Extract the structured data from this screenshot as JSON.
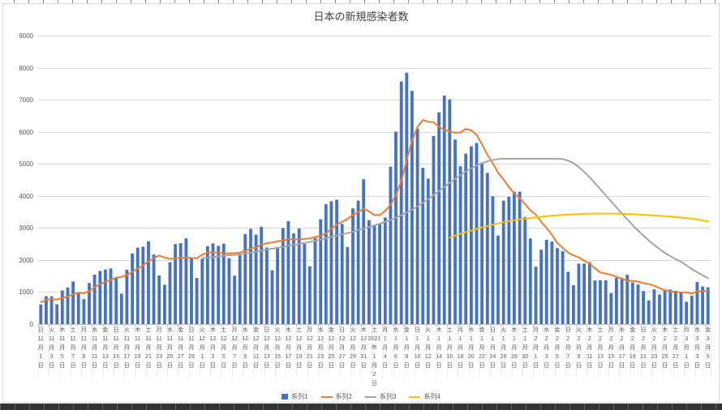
{
  "frame": {
    "top_ruler_tick_color": "#8f8f8f",
    "bottom_bar_color": "#333333"
  },
  "palette": {
    "background": "#FFFFFF",
    "grid": "#D9D9D9",
    "axis_line": "#BFBFBF",
    "axis_text": "#595959",
    "title_text": "#404040",
    "border": "#D9D9D9"
  },
  "chart_data": {
    "type": "combo (bar + 3 lines)",
    "title": "日本の新規感染者数",
    "legend_position": "bottom",
    "grid": true,
    "y_axis": {
      "min": 0,
      "max": 9000,
      "step": 1000
    },
    "x_axis": {
      "unit": "day",
      "start": "2020-11-01",
      "end": "2021-03-05",
      "label_interval_days": 2
    },
    "tick_labels": [
      [
        "日",
        "11",
        "1"
      ],
      [
        "火",
        "11",
        "3"
      ],
      [
        "木",
        "11",
        "5"
      ],
      [
        "土",
        "11",
        "7"
      ],
      [
        "月",
        "11",
        "9"
      ],
      [
        "水",
        "11",
        "11"
      ],
      [
        "金",
        "11",
        "13"
      ],
      [
        "日",
        "11",
        "15"
      ],
      [
        "火",
        "11",
        "17"
      ],
      [
        "木",
        "11",
        "19"
      ],
      [
        "土",
        "11",
        "21"
      ],
      [
        "月",
        "11",
        "23"
      ],
      [
        "水",
        "11",
        "25"
      ],
      [
        "金",
        "11",
        "27"
      ],
      [
        "日",
        "11",
        "29"
      ],
      [
        "火",
        "12",
        "1"
      ],
      [
        "木",
        "12",
        "3"
      ],
      [
        "土",
        "12",
        "5"
      ],
      [
        "月",
        "12",
        "7"
      ],
      [
        "水",
        "12",
        "9"
      ],
      [
        "金",
        "12",
        "11"
      ],
      [
        "日",
        "12",
        "13"
      ],
      [
        "火",
        "12",
        "15"
      ],
      [
        "木",
        "12",
        "17"
      ],
      [
        "土",
        "12",
        "19"
      ],
      [
        "月",
        "12",
        "21"
      ],
      [
        "水",
        "12",
        "23"
      ],
      [
        "金",
        "12",
        "25"
      ],
      [
        "日",
        "12",
        "27"
      ],
      [
        "火",
        "12",
        "29"
      ],
      [
        "木",
        "12",
        "31"
      ],
      [
        "土",
        "1",
        "2",
        "2021"
      ],
      [
        "月",
        "1",
        "4"
      ],
      [
        "水",
        "1",
        "6"
      ],
      [
        "金",
        "1",
        "8"
      ],
      [
        "日",
        "1",
        "10"
      ],
      [
        "火",
        "1",
        "12"
      ],
      [
        "木",
        "1",
        "14"
      ],
      [
        "土",
        "1",
        "16"
      ],
      [
        "月",
        "1",
        "18"
      ],
      [
        "水",
        "1",
        "20"
      ],
      [
        "金",
        "1",
        "22"
      ],
      [
        "日",
        "1",
        "24"
      ],
      [
        "火",
        "1",
        "26"
      ],
      [
        "木",
        "1",
        "28"
      ],
      [
        "土",
        "1",
        "30"
      ],
      [
        "月",
        "2",
        "1"
      ],
      [
        "水",
        "2",
        "3"
      ],
      [
        "金",
        "2",
        "5"
      ],
      [
        "日",
        "2",
        "7"
      ],
      [
        "火",
        "2",
        "9"
      ],
      [
        "木",
        "2",
        "11"
      ],
      [
        "土",
        "2",
        "13"
      ],
      [
        "月",
        "2",
        "15"
      ],
      [
        "水",
        "2",
        "17"
      ],
      [
        "金",
        "2",
        "19"
      ],
      [
        "日",
        "2",
        "21"
      ],
      [
        "火",
        "2",
        "23"
      ],
      [
        "木",
        "2",
        "25"
      ],
      [
        "土",
        "2",
        "27"
      ],
      [
        "月",
        "3",
        "1"
      ],
      [
        "水",
        "3",
        "3"
      ],
      [
        "金",
        "3",
        "5"
      ]
    ],
    "series": [
      {
        "name": "系列1",
        "type": "bar",
        "color": "#4472C4",
        "start_index": 0,
        "values": [
          614,
          871,
          867,
          620,
          1050,
          1141,
          1331,
          955,
          780,
          1284,
          1543,
          1660,
          1704,
          1738,
          1441,
          950,
          1699,
          2201,
          2386,
          2418,
          2586,
          2168,
          1520,
          1229,
          1930,
          2499,
          2525,
          2674,
          2066,
          1440,
          2030,
          2434,
          2518,
          2442,
          2508,
          2058,
          1509,
          2152,
          2810,
          2972,
          2790,
          3039,
          2387,
          1680,
          2410,
          2993,
          3211,
          2829,
          2982,
          2501,
          1806,
          2688,
          3271,
          3742,
          3832,
          3881,
          3127,
          2403,
          3607,
          3852,
          4520,
          3246,
          3058,
          3127,
          3325,
          4915,
          6004,
          7570,
          7844,
          7278,
          6097,
          4876,
          4538,
          5870,
          6607,
          7133,
          7014,
          5759,
          4925,
          5320,
          5549,
          5653,
          5045,
          4717,
          3989,
          2764,
          3853,
          3971,
          4133,
          4131,
          3344,
          2673,
          1792,
          2324,
          2631,
          2576,
          2371,
          2277,
          1631,
          1216,
          1883,
          1887,
          1933,
          1362,
          1371,
          1364,
          965,
          1443,
          1448,
          1538,
          1301,
          1234,
          1032,
          739,
          1086,
          922,
          1076,
          1083,
          1038,
          999,
          697,
          888,
          1316,
          1174,
          1148
        ]
      },
      {
        "name": "系列2",
        "type": "line",
        "color": "#ED7D31",
        "start_index": 0,
        "values": [
          685,
          751,
          783,
          767,
          812,
          863,
          928,
          976,
          963,
          1023,
          1155,
          1242,
          1322,
          1381,
          1450,
          1474,
          1534,
          1628,
          1731,
          1833,
          1954,
          2058,
          2140,
          2073,
          2034,
          2050,
          2065,
          2078,
          2063,
          2052,
          2166,
          2238,
          2241,
          2229,
          2205,
          2204,
          2214,
          2232,
          2285,
          2350,
          2400,
          2476,
          2523,
          2547,
          2584,
          2610,
          2644,
          2650,
          2642,
          2658,
          2676,
          2716,
          2755,
          2831,
          2975,
          3103,
          3192,
          3278,
          3409,
          3492,
          3603,
          3519,
          3402,
          3402,
          3534,
          3720,
          4028,
          4464,
          5120,
          5723,
          6148,
          6369,
          6315,
          6296,
          6159,
          6057,
          6019,
          5971,
          5978,
          6090,
          6044,
          5908,
          5609,
          5281,
          5028,
          4720,
          4510,
          4285,
          4067,
          3937,
          3741,
          3553,
          3414,
          3195,
          3004,
          2782,
          2530,
          2378,
          2229,
          2147,
          2084,
          1977,
          1885,
          1741,
          1612,
          1574,
          1538,
          1475,
          1412,
          1356,
          1347,
          1328,
          1280,
          1248,
          1197,
          1122,
          1056,
          1025,
          997,
          992,
          986,
          958,
          1014,
          1028,
          1037
        ]
      },
      {
        "name": "系列3",
        "type": "line",
        "color": "#A5A5A5",
        "start_index": 30,
        "values": [
          2050,
          2070,
          2090,
          2110,
          2130,
          2150,
          2160,
          2180,
          2200,
          2230,
          2260,
          2290,
          2320,
          2350,
          2380,
          2410,
          2440,
          2470,
          2500,
          2530,
          2560,
          2600,
          2640,
          2680,
          2720,
          2760,
          2800,
          2840,
          2880,
          2930,
          2980,
          3030,
          3080,
          3130,
          3190,
          3250,
          3320,
          3400,
          3480,
          3570,
          3670,
          3780,
          3900,
          4020,
          4150,
          4280,
          4410,
          4530,
          4650,
          4760,
          4860,
          4950,
          5020,
          5080,
          5120,
          5150,
          5160,
          5160,
          5160,
          5160,
          5160,
          5160,
          5160,
          5160,
          5160,
          5160,
          5160,
          5150,
          5100,
          5020,
          4900,
          4750,
          4580,
          4400,
          4210,
          4020,
          3830,
          3640,
          3450,
          3270,
          3090,
          2920,
          2760,
          2610,
          2470,
          2340,
          2220,
          2120,
          2030,
          1950,
          1830,
          1720,
          1620,
          1520,
          1430
        ]
      },
      {
        "name": "系列4",
        "type": "line",
        "color": "#FFC000",
        "start_index": 76,
        "values": [
          2700,
          2760,
          2820,
          2870,
          2920,
          2970,
          3020,
          3060,
          3100,
          3140,
          3180,
          3210,
          3240,
          3270,
          3290,
          3310,
          3330,
          3350,
          3365,
          3380,
          3395,
          3405,
          3415,
          3425,
          3435,
          3440,
          3445,
          3450,
          3450,
          3450,
          3450,
          3445,
          3440,
          3435,
          3430,
          3420,
          3410,
          3400,
          3390,
          3380,
          3370,
          3355,
          3340,
          3325,
          3310,
          3290,
          3265,
          3235,
          3200
        ]
      }
    ]
  }
}
